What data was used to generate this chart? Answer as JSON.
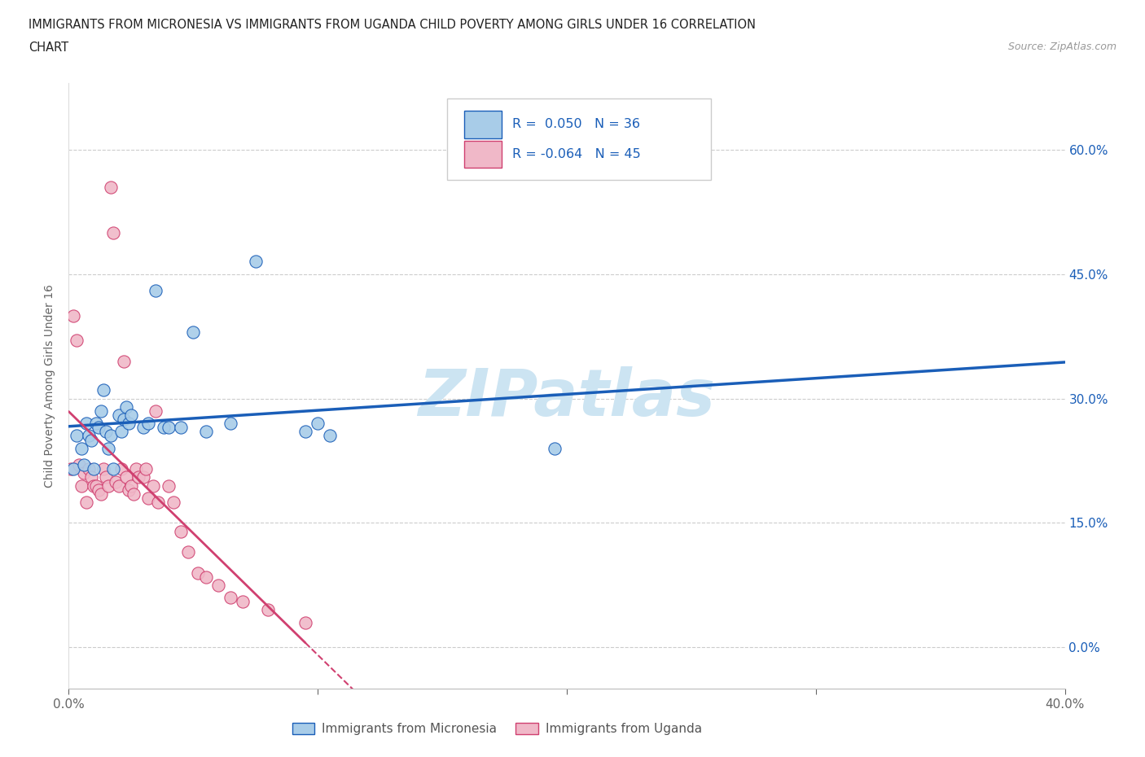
{
  "title_line1": "IMMIGRANTS FROM MICRONESIA VS IMMIGRANTS FROM UGANDA CHILD POVERTY AMONG GIRLS UNDER 16 CORRELATION",
  "title_line2": "CHART",
  "source": "Source: ZipAtlas.com",
  "ylabel": "Child Poverty Among Girls Under 16",
  "r_micronesia": 0.05,
  "n_micronesia": 36,
  "r_uganda": -0.064,
  "n_uganda": 45,
  "xlim": [
    0,
    0.4
  ],
  "ylim": [
    -0.05,
    0.68
  ],
  "xtick_positions": [
    0.0,
    0.1,
    0.2,
    0.3,
    0.4
  ],
  "xtick_labels": [
    "0.0%",
    "",
    "",
    "",
    "40.0%"
  ],
  "ytick_positions": [
    0.0,
    0.15,
    0.3,
    0.45,
    0.6
  ],
  "ytick_labels": [
    "0.0%",
    "15.0%",
    "30.0%",
    "45.0%",
    "60.0%"
  ],
  "color_micronesia": "#a8cce8",
  "color_uganda": "#f0b8c8",
  "line_color_micronesia": "#1a5eb8",
  "line_color_uganda": "#d04070",
  "watermark": "ZIPatlas",
  "watermark_color": "#cce4f2",
  "micronesia_x": [
    0.002,
    0.003,
    0.005,
    0.006,
    0.007,
    0.008,
    0.009,
    0.01,
    0.011,
    0.012,
    0.013,
    0.014,
    0.015,
    0.016,
    0.017,
    0.018,
    0.02,
    0.021,
    0.022,
    0.023,
    0.024,
    0.025,
    0.03,
    0.032,
    0.035,
    0.038,
    0.04,
    0.045,
    0.05,
    0.055,
    0.065,
    0.075,
    0.095,
    0.1,
    0.105,
    0.195
  ],
  "micronesia_y": [
    0.215,
    0.255,
    0.24,
    0.22,
    0.27,
    0.255,
    0.25,
    0.215,
    0.27,
    0.265,
    0.285,
    0.31,
    0.26,
    0.24,
    0.255,
    0.215,
    0.28,
    0.26,
    0.275,
    0.29,
    0.27,
    0.28,
    0.265,
    0.27,
    0.43,
    0.265,
    0.265,
    0.265,
    0.38,
    0.26,
    0.27,
    0.465,
    0.26,
    0.27,
    0.255,
    0.24
  ],
  "uganda_x": [
    0.001,
    0.002,
    0.003,
    0.004,
    0.005,
    0.006,
    0.007,
    0.008,
    0.009,
    0.01,
    0.011,
    0.012,
    0.013,
    0.014,
    0.015,
    0.016,
    0.017,
    0.018,
    0.019,
    0.02,
    0.021,
    0.022,
    0.023,
    0.024,
    0.025,
    0.026,
    0.027,
    0.028,
    0.03,
    0.031,
    0.032,
    0.034,
    0.035,
    0.036,
    0.04,
    0.042,
    0.045,
    0.048,
    0.052,
    0.055,
    0.06,
    0.065,
    0.07,
    0.08,
    0.095
  ],
  "uganda_y": [
    0.215,
    0.4,
    0.37,
    0.22,
    0.195,
    0.21,
    0.175,
    0.215,
    0.205,
    0.195,
    0.195,
    0.19,
    0.185,
    0.215,
    0.205,
    0.195,
    0.555,
    0.5,
    0.2,
    0.195,
    0.215,
    0.345,
    0.205,
    0.19,
    0.195,
    0.185,
    0.215,
    0.205,
    0.205,
    0.215,
    0.18,
    0.195,
    0.285,
    0.175,
    0.195,
    0.175,
    0.14,
    0.115,
    0.09,
    0.085,
    0.075,
    0.06,
    0.055,
    0.045,
    0.03
  ]
}
